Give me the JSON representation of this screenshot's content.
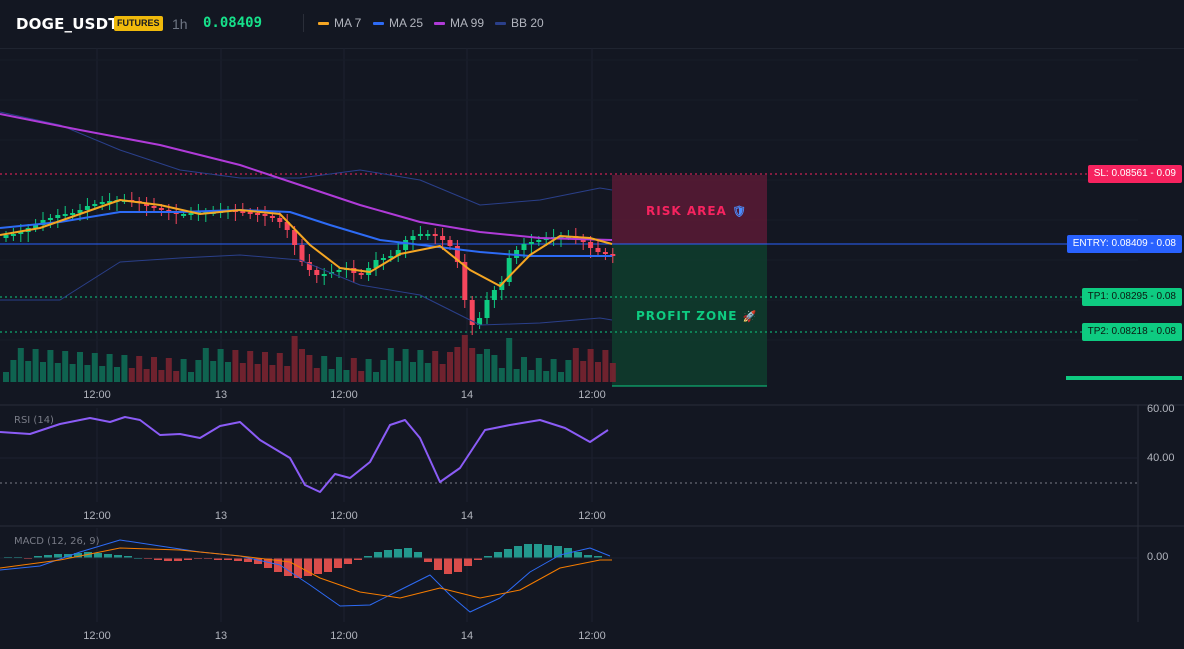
{
  "header": {
    "symbol": "DOGE_USDT",
    "badge": "FUTURES",
    "timeframe": "1h",
    "last_price": "0.08409",
    "legend": [
      {
        "label": "MA 7",
        "color": "#f5a623"
      },
      {
        "label": "MA 25",
        "color": "#2d6bf5"
      },
      {
        "label": "MA 99",
        "color": "#b03bd8"
      },
      {
        "label": "BB 20",
        "color": "#2a3f8a"
      }
    ]
  },
  "levels": {
    "sl": {
      "label": "SL: 0.08561",
      "value": "0.09",
      "color": "#f6235f"
    },
    "entry": {
      "label": "ENTRY: 0.08409",
      "value": "0.08",
      "color": "#2962ff"
    },
    "tp1": {
      "label": "TP1: 0.08295",
      "value": "0.08",
      "color": "#0ecb81"
    },
    "tp2": {
      "label": "TP2: 0.08218",
      "value": "0.08",
      "color": "#0ecb81"
    }
  },
  "zones": {
    "risk": {
      "label": "RISK AREA",
      "icon": "shield-icon"
    },
    "profit": {
      "label": "PROFIT ZONE",
      "icon": "rocket-icon"
    }
  },
  "x_axis_labels": [
    "12:00",
    "13",
    "12:00",
    "14",
    "12:00"
  ],
  "rsi": {
    "title": "RSI (14)",
    "ticks": [
      "60.00",
      "40.00"
    ]
  },
  "macd": {
    "title": "MACD (12, 26, 9)",
    "ticks": [
      "0.00"
    ]
  },
  "colors": {
    "up": "#0ecb81",
    "down": "#f6465d",
    "background": "#131722",
    "grid": "#1f2430"
  }
}
